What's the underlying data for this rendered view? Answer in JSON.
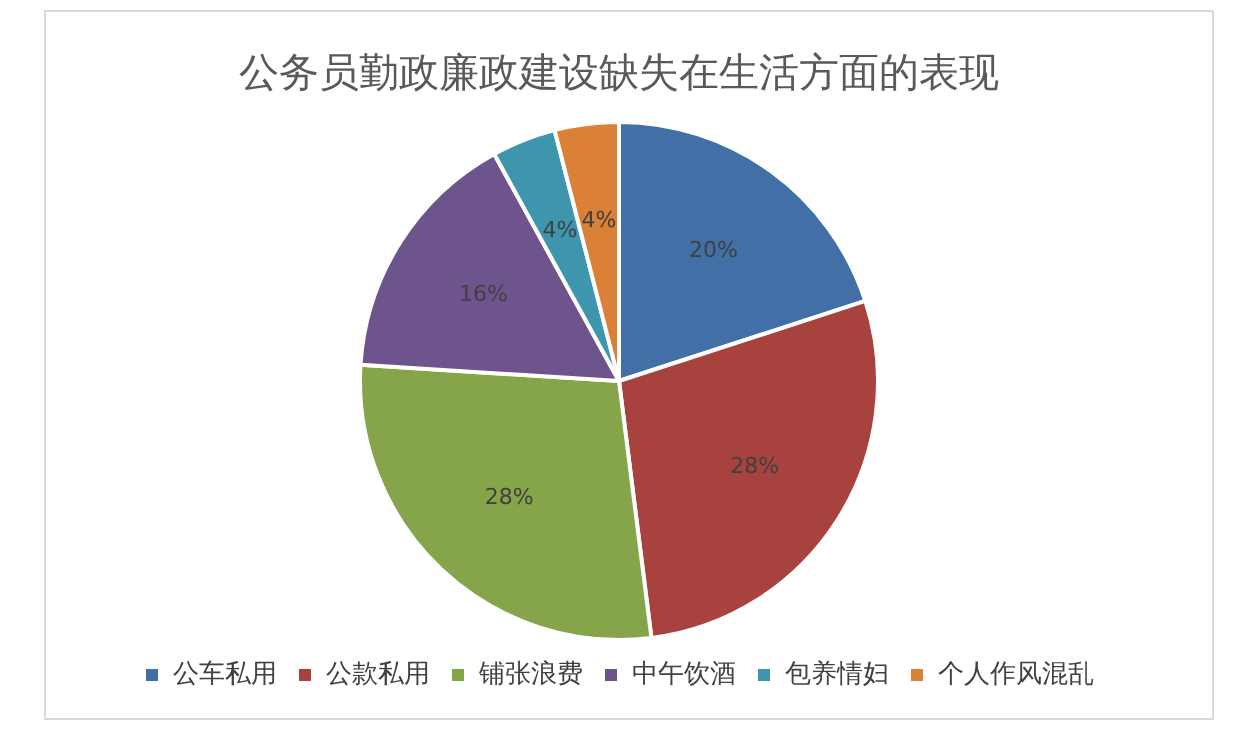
{
  "chart_data": {
    "type": "pie",
    "title": "公务员勤政廉政建设缺失在生活方面的表现",
    "categories": [
      "公车私用",
      "公款私用",
      "铺张浪费",
      "中午饮酒",
      "包养情妇",
      "个人作风混乱"
    ],
    "values": [
      20,
      28,
      28,
      16,
      4,
      4
    ],
    "value_labels": [
      "20%",
      "28%",
      "28%",
      "16%",
      "4%",
      "4%"
    ],
    "colors": [
      "#416fa6",
      "#a8423f",
      "#86a44a",
      "#6e548d",
      "#3d96ae",
      "#da8137"
    ],
    "legend": "bottom"
  }
}
